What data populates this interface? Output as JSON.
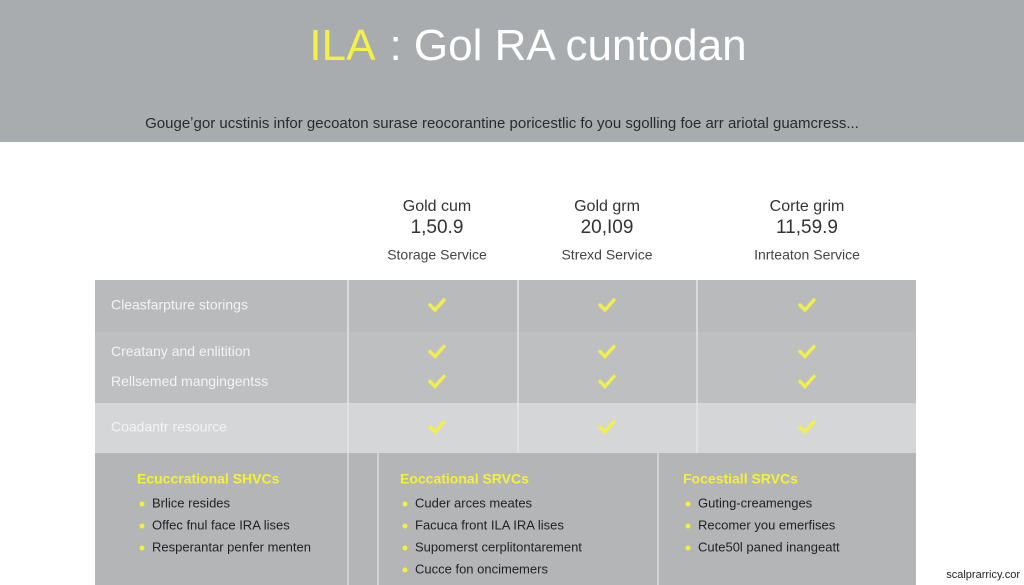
{
  "header": {
    "title_highlight": "ILA",
    "title_rest": ": Gol RA cuntodan",
    "subtitle": "Gougeʼgor ucstinis infor gecoaton surase reocorantine poricestlic fo you sgolling foe arr ariotal guamcress..."
  },
  "plans": [
    {
      "name": "Gold cum",
      "price": "1,50.9",
      "service": "Storage Service"
    },
    {
      "name": "Gold grm",
      "price": "20,I09",
      "service": "Strexd Service"
    },
    {
      "name": "Corte grim",
      "price": "11,59.9",
      "service": "Inrteaton Service"
    }
  ],
  "feature_groups": [
    [
      {
        "label": "Cleasfarpture storings",
        "included": [
          true,
          true,
          true
        ]
      }
    ],
    [
      {
        "label": "Creatany and enlitition",
        "included": [
          true,
          true,
          true
        ]
      },
      {
        "label": "Rellsemed mangingentss",
        "included": [
          true,
          true,
          true
        ]
      }
    ],
    [
      {
        "label": "Coadantr resource",
        "included": [
          true,
          true,
          true
        ]
      }
    ]
  ],
  "sections": [
    {
      "heading": "Ecuccrational SHVCs",
      "items": [
        "Brlice resides",
        "Offec fnul face IRA lises",
        "Resperantar penfer menten"
      ]
    },
    {
      "heading": "Eoccational SRVCs",
      "items": [
        "Cuder arces meates",
        "Facuca front ILA IRA lises",
        "Supomerst cerplitontarement",
        "Cucce fon oncimemers"
      ]
    },
    {
      "heading": "Focestiall SRVCs",
      "items": [
        "Guting-creamenges",
        "Recomer you emerfises",
        "Cute50l paned inangeatt"
      ]
    }
  ],
  "watermark": "scalprarricy.cor"
}
